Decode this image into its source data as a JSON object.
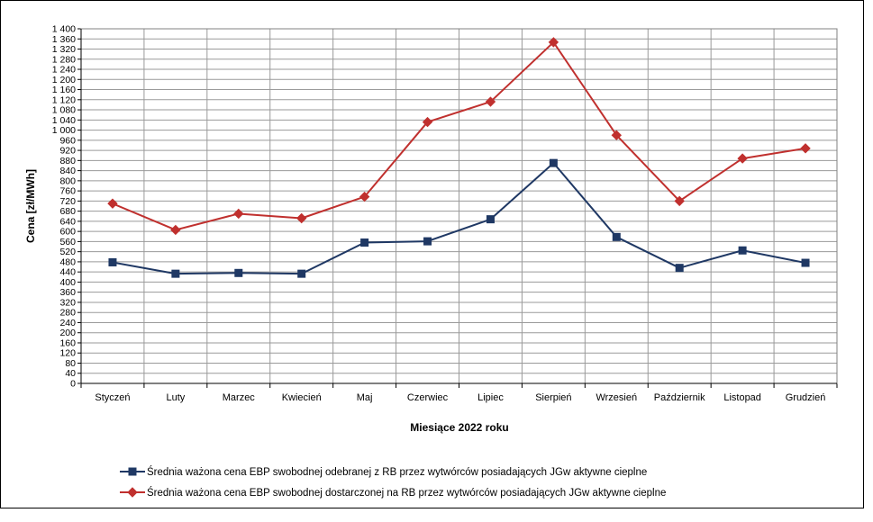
{
  "chart_data": {
    "type": "line",
    "title": "",
    "xlabel": "Miesiące 2022  roku",
    "ylabel": "Cena [zł/MWh]",
    "ylim": [
      0,
      1400
    ],
    "ytick_step": 40,
    "ytick_labels": [
      "0",
      "40",
      "80",
      "120",
      "160",
      "200",
      "240",
      "280",
      "320",
      "360",
      "400",
      "440",
      "480",
      "520",
      "560",
      "600",
      "640",
      "680",
      "720",
      "760",
      "800",
      "840",
      "880",
      "920",
      "960",
      "1 000",
      "1 040",
      "1 080",
      "1 120",
      "1 160",
      "1 200",
      "1 240",
      "1 280",
      "1 320",
      "1 360",
      "1 400"
    ],
    "grid": true,
    "legend_position": "bottom",
    "categories": [
      "Styczeń",
      "Luty",
      "Marzec",
      "Kwiecień",
      "Maj",
      "Czerwiec",
      "Lipiec",
      "Sierpień",
      "Wrzesień",
      "Październik",
      "Listopad",
      "Grudzień"
    ],
    "series": [
      {
        "name": "Średnia ważona cena EBP swobodnej odebranej z RB przez wytwórców posiadających JGw aktywne cieplne",
        "color": "#1F3864",
        "marker": "square",
        "values": [
          478,
          433,
          436,
          433,
          556,
          561,
          648,
          870,
          578,
          456,
          525,
          476
        ]
      },
      {
        "name": "Średnia ważona cena EBP swobodnej dostarczonej na RB przez wytwórców posiadających JGw aktywne cieplne",
        "color": "#C0302E",
        "marker": "diamond",
        "values": [
          710,
          606,
          670,
          652,
          737,
          1032,
          1112,
          1347,
          980,
          720,
          888,
          928
        ]
      }
    ]
  }
}
